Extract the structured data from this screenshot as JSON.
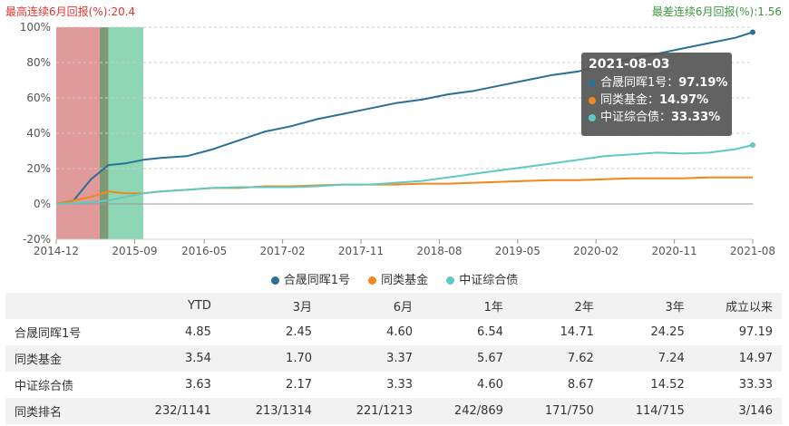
{
  "notes": {
    "max_streak": "最高连续6月回报(%):20.4",
    "min_streak": "最差连续6月回报(%):1.56"
  },
  "colors": {
    "fund": "#2a6f97",
    "peer": "#f2871b",
    "index": "#5fc9c4",
    "band_red": "#e09a9a",
    "band_green": "#8fd6b4",
    "band_overlap": "#7d9a72"
  },
  "chart_data": {
    "type": "line",
    "x_ticks": [
      "2014-12",
      "2015-09",
      "2016-05",
      "2017-02",
      "2017-11",
      "2018-08",
      "2019-05",
      "2020-02",
      "2020-11",
      "2021-08"
    ],
    "y_ticks": [
      "100%",
      "80%",
      "60%",
      "40%",
      "20%",
      "0%",
      "-20%"
    ],
    "ylim": [
      -20,
      100
    ],
    "grid": "horizontal",
    "x": [
      "2014-12",
      "2015-02",
      "2015-04",
      "2015-06",
      "2015-08",
      "2015-10",
      "2015-12",
      "2016-03",
      "2016-06",
      "2016-09",
      "2016-12",
      "2017-03",
      "2017-06",
      "2017-09",
      "2017-12",
      "2018-03",
      "2018-06",
      "2018-09",
      "2018-12",
      "2019-03",
      "2019-06",
      "2019-09",
      "2019-12",
      "2020-03",
      "2020-06",
      "2020-09",
      "2020-12",
      "2021-03",
      "2021-06",
      "2021-08"
    ],
    "series": [
      {
        "name": "合晟同晖1号",
        "values": [
          0,
          2,
          14,
          22,
          23,
          25,
          26,
          27,
          31,
          36,
          41,
          44,
          48,
          51,
          54,
          57,
          59,
          62,
          64,
          67,
          70,
          73,
          75,
          79,
          82,
          85,
          88,
          91,
          94,
          97.19
        ]
      },
      {
        "name": "同类基金",
        "values": [
          0,
          2,
          4,
          7,
          6,
          6,
          7,
          8,
          9,
          9,
          10,
          10,
          10.5,
          11,
          11,
          11,
          11.5,
          11.5,
          12,
          12.5,
          13,
          13.5,
          13.5,
          14,
          14.5,
          14.5,
          14.5,
          15,
          15,
          14.97
        ]
      },
      {
        "name": "中证综合债",
        "values": [
          0,
          0.5,
          1,
          2,
          4,
          6,
          7,
          8,
          9,
          9.5,
          9.5,
          9.5,
          10,
          11,
          11,
          12,
          13,
          15,
          17,
          19,
          21,
          23,
          25,
          27,
          28,
          29,
          28.5,
          29,
          31,
          33.33
        ]
      }
    ],
    "bands": [
      {
        "name": "max_streak",
        "from": "2014-12",
        "to": "2015-06"
      },
      {
        "name": "min_streak",
        "from": "2015-05",
        "to": "2015-10"
      }
    ],
    "tooltip": {
      "date": "2021-08-03",
      "rows": [
        {
          "label": "合晟同晖1号：",
          "value": "97.19%"
        },
        {
          "label": "同类基金：",
          "value": "14.97%"
        },
        {
          "label": "中证综合债：",
          "value": "33.33%"
        }
      ]
    },
    "legend": [
      "合晟同晖1号",
      "同类基金",
      "中证综合债"
    ],
    "legend_position": "bottom"
  },
  "table": {
    "headers": [
      "",
      "YTD",
      "3月",
      "6月",
      "1年",
      "2年",
      "3年",
      "成立以来"
    ],
    "rows": [
      [
        "合晟同晖1号",
        "4.85",
        "2.45",
        "4.60",
        "6.54",
        "14.71",
        "24.25",
        "97.19"
      ],
      [
        "同类基金",
        "3.54",
        "1.70",
        "3.37",
        "5.67",
        "7.62",
        "7.24",
        "14.97"
      ],
      [
        "中证综合债",
        "3.63",
        "2.17",
        "3.33",
        "4.60",
        "8.67",
        "14.52",
        "33.33"
      ],
      [
        "同类排名",
        "232/1141",
        "213/1314",
        "221/1213",
        "242/869",
        "171/750",
        "114/715",
        "3/146"
      ]
    ]
  }
}
